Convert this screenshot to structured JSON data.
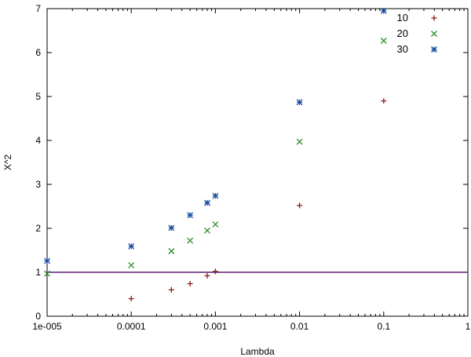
{
  "chart_data": {
    "type": "scatter",
    "xlabel": "Lambda",
    "ylabel": "X^2",
    "xscale": "log",
    "xlim": [
      1e-05,
      1
    ],
    "ylim": [
      0,
      7
    ],
    "xticks": [
      {
        "value": 1e-05,
        "label": "1e-005"
      },
      {
        "value": 0.0001,
        "label": "0.0001"
      },
      {
        "value": 0.001,
        "label": "0.001"
      },
      {
        "value": 0.01,
        "label": "0.01"
      },
      {
        "value": 0.1,
        "label": "0.1"
      },
      {
        "value": 1,
        "label": "1"
      }
    ],
    "yticks": [
      {
        "value": 0,
        "label": "0"
      },
      {
        "value": 1,
        "label": "1"
      },
      {
        "value": 2,
        "label": "2"
      },
      {
        "value": 3,
        "label": "3"
      },
      {
        "value": 4,
        "label": "4"
      },
      {
        "value": 5,
        "label": "5"
      },
      {
        "value": 6,
        "label": "6"
      },
      {
        "value": 7,
        "label": "7"
      }
    ],
    "grid": false,
    "legend_position": "top-right",
    "reference_line": {
      "y": 1,
      "color": "#5c1a6e"
    },
    "series": [
      {
        "name": "10",
        "marker": "plus",
        "color": "#8b1a1a",
        "points": [
          [
            0.0001,
            0.4
          ],
          [
            0.0003,
            0.6
          ],
          [
            0.0005,
            0.74
          ],
          [
            0.0008,
            0.92
          ],
          [
            0.001,
            1.02
          ],
          [
            0.01,
            2.52
          ],
          [
            0.1,
            4.9
          ]
        ]
      },
      {
        "name": "20",
        "marker": "cross",
        "color": "#2e8b2e",
        "points": [
          [
            1e-05,
            0.97
          ],
          [
            0.0001,
            1.16
          ],
          [
            0.0003,
            1.48
          ],
          [
            0.0005,
            1.72
          ],
          [
            0.0008,
            1.95
          ],
          [
            0.001,
            2.09
          ],
          [
            0.01,
            3.97
          ],
          [
            0.1,
            6.27
          ]
        ]
      },
      {
        "name": "30",
        "marker": "star",
        "color": "#1a4fa0",
        "points": [
          [
            1e-05,
            1.26
          ],
          [
            0.0001,
            1.59
          ],
          [
            0.0003,
            2.01
          ],
          [
            0.0005,
            2.3
          ],
          [
            0.0008,
            2.58
          ],
          [
            0.001,
            2.74
          ],
          [
            0.01,
            4.87
          ],
          [
            0.1,
            6.95
          ]
        ]
      }
    ]
  }
}
